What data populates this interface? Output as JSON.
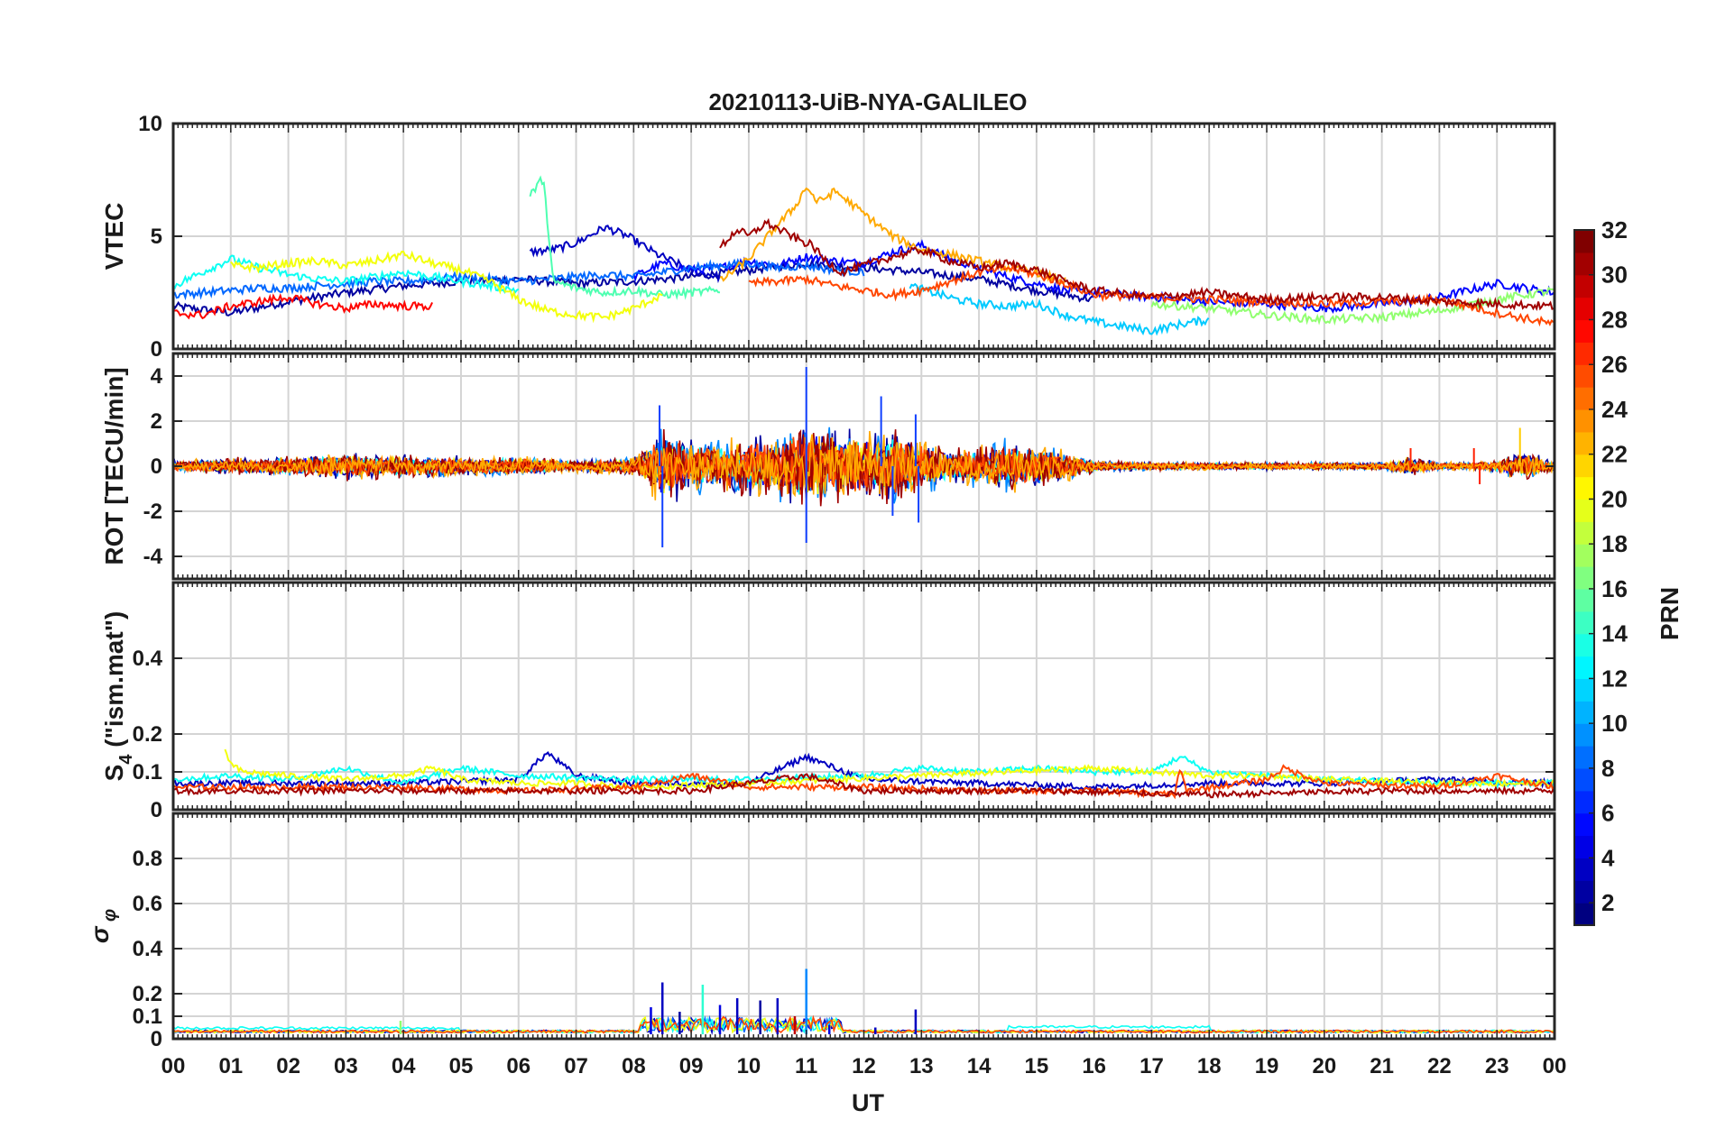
{
  "title": "20210113-UiB-NYA-GALILEO",
  "xlabel": "UT",
  "x_ticks": [
    "00",
    "01",
    "02",
    "03",
    "04",
    "05",
    "06",
    "07",
    "08",
    "09",
    "10",
    "11",
    "12",
    "13",
    "14",
    "15",
    "16",
    "17",
    "18",
    "19",
    "20",
    "21",
    "22",
    "23",
    "00"
  ],
  "colorbar": {
    "label": "PRN",
    "range": [
      1,
      32
    ],
    "ticks": [
      "2",
      "4",
      "6",
      "8",
      "10",
      "12",
      "14",
      "16",
      "18",
      "20",
      "22",
      "24",
      "26",
      "28",
      "30",
      "32"
    ],
    "colormap": "jet",
    "colors": [
      "#00007f",
      "#0000ff",
      "#007fff",
      "#00ffff",
      "#7fff7f",
      "#ffff00",
      "#ff7f00",
      "#ff0000",
      "#7f0000"
    ]
  },
  "chart_data": [
    {
      "type": "line",
      "panel": "vtec",
      "ylabel": "VTEC",
      "ylim": [
        0,
        10
      ],
      "y_ticks": [
        "0",
        "5",
        "10"
      ],
      "x_unit": "hours UT",
      "xlim": [
        0,
        24
      ],
      "grid": true,
      "series": [
        {
          "prn": 2,
          "x": [
            0,
            1,
            2,
            3,
            4,
            5,
            6,
            7,
            8,
            9,
            10,
            11,
            12,
            13,
            14,
            15,
            16
          ],
          "y": [
            1.9,
            1.6,
            2.1,
            2.5,
            2.8,
            3.0,
            3.1,
            2.9,
            3.0,
            3.2,
            3.5,
            3.8,
            3.6,
            3.4,
            3.1,
            2.6,
            2.2
          ]
        },
        {
          "prn": 3,
          "x": [
            6.2,
            6.6,
            7.0,
            7.5,
            7.9,
            8.4,
            9.0,
            9.5
          ],
          "y": [
            4.3,
            4.4,
            4.7,
            5.4,
            5.0,
            4.2,
            3.5,
            3.2
          ]
        },
        {
          "prn": 5,
          "x": [
            8.0,
            8.5,
            9.0,
            9.5,
            10.0,
            10.5,
            11.0,
            11.5,
            12.0,
            12.5,
            13.0,
            13.5,
            14.0,
            14.5,
            15.0,
            15.5,
            16.0,
            16.5,
            17.0,
            17.5,
            18.0,
            18.5,
            19.0,
            19.5,
            20.0,
            20.5,
            21.0,
            21.5,
            22.0,
            22.5,
            23.0,
            23.5,
            24.0
          ],
          "y": [
            3.2,
            3.8,
            3.5,
            3.6,
            3.9,
            3.7,
            4.1,
            3.9,
            3.8,
            4.3,
            4.6,
            4.0,
            3.6,
            3.2,
            2.9,
            2.6,
            2.5,
            2.4,
            2.3,
            2.2,
            2.1,
            2.0,
            2.0,
            1.9,
            1.8,
            1.9,
            2.0,
            2.1,
            2.3,
            2.6,
            2.9,
            2.7,
            2.5
          ]
        },
        {
          "prn": 8,
          "x": [
            0,
            0.5,
            1,
            1.5,
            2,
            2.5,
            3,
            3.5,
            4,
            4.5,
            5,
            5.5,
            6,
            6.5,
            7,
            7.5,
            8,
            8.5,
            9,
            9.5,
            10,
            10.5,
            11,
            11.5,
            12
          ],
          "y": [
            2.4,
            2.5,
            2.6,
            2.7,
            2.7,
            2.8,
            2.9,
            3.0,
            3.0,
            3.1,
            3.2,
            3.1,
            3.0,
            3.1,
            3.2,
            3.3,
            3.2,
            3.4,
            3.6,
            3.7,
            3.8,
            3.6,
            3.7,
            3.5,
            3.4
          ]
        },
        {
          "prn": 11,
          "x": [
            12.8,
            13.2,
            13.6,
            14.0,
            14.5,
            15.0,
            15.5,
            16.0,
            16.5,
            17.0,
            17.5,
            18.0
          ],
          "y": [
            2.8,
            2.5,
            2.2,
            2.0,
            1.9,
            2.0,
            1.5,
            1.2,
            1.0,
            0.8,
            1.1,
            1.3
          ]
        },
        {
          "prn": 13,
          "x": [
            0,
            0.5,
            1.0,
            1.5,
            2.0,
            2.5,
            3.0,
            3.5,
            4.0,
            4.5,
            5.0,
            5.5,
            6.0
          ],
          "y": [
            2.8,
            3.4,
            4.0,
            3.6,
            3.3,
            3.1,
            3.0,
            3.2,
            3.4,
            3.2,
            3.0,
            2.8,
            2.6
          ]
        },
        {
          "prn": 15,
          "x": [
            6.2,
            6.4,
            6.45,
            6.5,
            6.6,
            7.0,
            7.5,
            8.0,
            8.5,
            9.0,
            9.5
          ],
          "y": [
            6.8,
            7.5,
            7.5,
            5.5,
            3.0,
            2.7,
            2.5,
            2.6,
            2.4,
            2.5,
            2.6
          ]
        },
        {
          "prn": 17,
          "x": [
            17,
            18,
            19,
            20,
            21,
            22,
            23,
            24
          ],
          "y": [
            2.0,
            1.8,
            1.5,
            1.3,
            1.4,
            1.7,
            2.2,
            2.6
          ]
        },
        {
          "prn": 20,
          "x": [
            1,
            1.5,
            2,
            2.5,
            3,
            3.5,
            4,
            4.5,
            5,
            5.5,
            6,
            6.5,
            7,
            7.5,
            8,
            8.5
          ],
          "y": [
            3.7,
            3.6,
            3.8,
            3.9,
            3.7,
            3.9,
            4.2,
            3.8,
            3.5,
            3.0,
            2.2,
            1.7,
            1.5,
            1.4,
            1.8,
            2.4
          ]
        },
        {
          "prn": 23,
          "x": [
            9.5,
            10.0,
            10.5,
            10.8,
            11.0,
            11.2,
            11.5,
            12.0,
            12.5,
            13.0,
            13.5,
            14.0,
            14.5,
            15.0,
            15.5
          ],
          "y": [
            3.0,
            4.0,
            5.5,
            6.3,
            7.2,
            6.5,
            7.0,
            6.0,
            5.0,
            4.4,
            4.2,
            3.9,
            3.6,
            3.4,
            3.0
          ]
        },
        {
          "prn": 26,
          "x": [
            10.0,
            10.5,
            11.0,
            11.5,
            12.0,
            12.5,
            13.0,
            13.5,
            14.0,
            14.5,
            15.0,
            15.5,
            16.0,
            17.0,
            18.0,
            19.0,
            20.0,
            21.0,
            22.0,
            23.0,
            24.0
          ],
          "y": [
            2.9,
            3.0,
            3.1,
            2.8,
            2.6,
            2.4,
            2.6,
            3.0,
            3.4,
            3.6,
            3.3,
            2.9,
            2.4,
            2.3,
            2.2,
            2.1,
            2.0,
            2.1,
            2.2,
            1.6,
            1.1
          ]
        },
        {
          "prn": 28,
          "x": [
            0,
            0.5,
            1,
            1.5,
            2,
            2.5,
            3,
            3.5,
            4,
            4.5
          ],
          "y": [
            1.6,
            1.5,
            1.9,
            2.1,
            2.3,
            2.0,
            1.8,
            2.0,
            1.9,
            1.9
          ]
        },
        {
          "prn": 31,
          "x": [
            9.5,
            9.8,
            10.0,
            10.3,
            10.6,
            10.9,
            11.1,
            11.3,
            11.6,
            12.0,
            12.5,
            13.0,
            13.5,
            14.0,
            14.5,
            15.0,
            15.5,
            16.0,
            17.0,
            18.0,
            19.0,
            20.0,
            21.0,
            22.0,
            23.0,
            24.0
          ],
          "y": [
            4.5,
            5.3,
            5.0,
            5.6,
            5.2,
            4.8,
            4.6,
            4.0,
            3.4,
            3.7,
            4.1,
            4.4,
            3.9,
            3.6,
            3.8,
            3.5,
            3.0,
            2.6,
            2.3,
            2.5,
            2.2,
            2.3,
            2.3,
            2.1,
            2.0,
            1.9
          ]
        }
      ]
    },
    {
      "type": "line",
      "panel": "rot",
      "ylabel": "ROT [TECU/min]",
      "ylim": [
        -5,
        5
      ],
      "y_ticks": [
        "-4",
        "-2",
        "0",
        "2",
        "4"
      ],
      "xlim": [
        0,
        24
      ],
      "grid": true,
      "envelope": {
        "x": [
          0,
          1,
          2,
          3,
          4,
          5,
          6,
          7,
          8,
          8.5,
          9,
          9.5,
          10,
          10.5,
          11,
          11.5,
          12,
          12.5,
          13,
          13.5,
          14,
          14.5,
          15,
          15.5,
          16,
          17,
          18,
          19,
          20,
          21,
          21.5,
          22,
          22.5,
          23,
          23.5,
          24
        ],
        "amp": [
          0.3,
          0.4,
          0.5,
          0.7,
          0.6,
          0.5,
          0.5,
          0.3,
          0.5,
          2.0,
          1.3,
          1.3,
          1.6,
          1.8,
          2.2,
          1.9,
          1.8,
          2.0,
          1.4,
          0.8,
          1.1,
          1.3,
          1.1,
          0.8,
          0.3,
          0.2,
          0.2,
          0.2,
          0.2,
          0.2,
          0.5,
          0.2,
          0.2,
          0.3,
          0.8,
          0.2
        ]
      },
      "spikes": [
        {
          "x": 8.45,
          "y": 2.7
        },
        {
          "x": 8.5,
          "y": -3.6
        },
        {
          "x": 11.0,
          "y": 4.4
        },
        {
          "x": 11.0,
          "y": -3.4
        },
        {
          "x": 12.3,
          "y": 3.1
        },
        {
          "x": 12.5,
          "y": -2.2
        },
        {
          "x": 12.9,
          "y": 2.3
        },
        {
          "x": 12.95,
          "y": -2.5
        },
        {
          "x": 21.5,
          "y": 0.8
        },
        {
          "x": 22.6,
          "y": 0.8
        },
        {
          "x": 23.4,
          "y": 1.7
        },
        {
          "x": 22.7,
          "y": -0.8
        }
      ]
    },
    {
      "type": "line",
      "panel": "s4",
      "ylabel": "S_4 (\"ism.mat\")",
      "ylim": [
        0,
        0.6
      ],
      "y_ticks": [
        "0",
        "0.1",
        "0.2",
        "0.4"
      ],
      "xlim": [
        0,
        24
      ],
      "grid": true,
      "series": [
        {
          "prn": 3,
          "x": [
            0,
            2,
            4,
            6,
            6.5,
            7,
            8,
            10,
            11,
            12,
            14,
            16,
            18,
            20,
            22,
            24
          ],
          "y": [
            0.07,
            0.07,
            0.07,
            0.08,
            0.15,
            0.09,
            0.07,
            0.07,
            0.14,
            0.08,
            0.07,
            0.06,
            0.07,
            0.07,
            0.08,
            0.07
          ]
        },
        {
          "prn": 13,
          "x": [
            0,
            1,
            2,
            3,
            4,
            5,
            6,
            8,
            10,
            12,
            13,
            14,
            15,
            16,
            17,
            17.5,
            18,
            20,
            22,
            24
          ],
          "y": [
            0.08,
            0.09,
            0.08,
            0.11,
            0.07,
            0.11,
            0.09,
            0.08,
            0.08,
            0.09,
            0.11,
            0.1,
            0.11,
            0.1,
            0.1,
            0.14,
            0.1,
            0.08,
            0.07,
            0.07
          ]
        },
        {
          "prn": 20,
          "x": [
            0.9,
            1.0,
            1.2,
            2,
            3,
            4,
            4.5,
            5,
            6,
            7,
            8,
            10,
            16,
            17,
            18,
            19,
            20,
            22,
            24
          ],
          "y": [
            0.16,
            0.12,
            0.1,
            0.09,
            0.08,
            0.09,
            0.11,
            0.08,
            0.07,
            0.07,
            0.06,
            0.07,
            0.11,
            0.1,
            0.09,
            0.09,
            0.08,
            0.07,
            0.07
          ]
        },
        {
          "prn": 26,
          "x": [
            0,
            2,
            4,
            6,
            8,
            9,
            10,
            12,
            14,
            16,
            17.4,
            17.5,
            17.6,
            19,
            19.3,
            20,
            22,
            23,
            24
          ],
          "y": [
            0.06,
            0.06,
            0.06,
            0.05,
            0.06,
            0.09,
            0.06,
            0.06,
            0.05,
            0.05,
            0.04,
            0.11,
            0.05,
            0.08,
            0.11,
            0.07,
            0.06,
            0.09,
            0.06
          ]
        },
        {
          "prn": 31,
          "x": [
            0,
            3,
            6,
            9,
            11,
            12,
            15,
            18,
            21,
            24
          ],
          "y": [
            0.05,
            0.05,
            0.05,
            0.05,
            0.09,
            0.05,
            0.05,
            0.04,
            0.05,
            0.05
          ]
        }
      ]
    },
    {
      "type": "line",
      "panel": "sigma_phi",
      "ylabel": "σ_φ",
      "ylim": [
        0,
        1
      ],
      "y_ticks": [
        "0",
        "0.1",
        "0.2",
        "0.4",
        "0.6",
        "0.8"
      ],
      "xlim": [
        0,
        24
      ],
      "grid": true,
      "baseline": 0.03,
      "spikes": [
        {
          "x": 8.3,
          "y": 0.14,
          "prn": 4
        },
        {
          "x": 8.5,
          "y": 0.25,
          "prn": 3
        },
        {
          "x": 8.8,
          "y": 0.12,
          "prn": 2
        },
        {
          "x": 9.2,
          "y": 0.24,
          "prn": 14
        },
        {
          "x": 9.5,
          "y": 0.15,
          "prn": 4
        },
        {
          "x": 9.8,
          "y": 0.18,
          "prn": 3
        },
        {
          "x": 10.2,
          "y": 0.17,
          "prn": 2
        },
        {
          "x": 10.5,
          "y": 0.18,
          "prn": 3
        },
        {
          "x": 10.8,
          "y": 0.1,
          "prn": 30
        },
        {
          "x": 11.0,
          "y": 0.31,
          "prn": 9
        },
        {
          "x": 11.4,
          "y": 0.06,
          "prn": 4
        },
        {
          "x": 12.2,
          "y": 0.05,
          "prn": 3
        },
        {
          "x": 12.9,
          "y": 0.13,
          "prn": 3
        },
        {
          "x": 3.95,
          "y": 0.08,
          "prn": 17
        }
      ]
    }
  ]
}
